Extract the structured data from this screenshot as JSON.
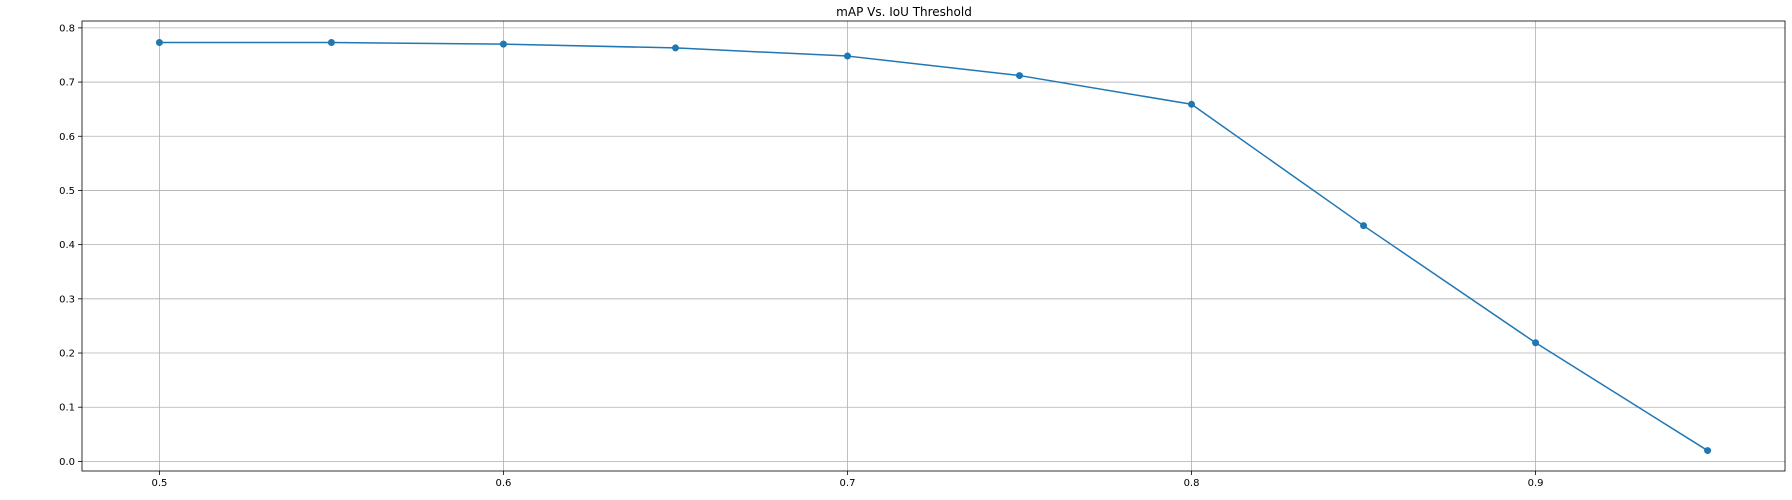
{
  "chart_data": {
    "type": "line",
    "title": "mAP Vs. IoU Threshold",
    "xlabel": "",
    "ylabel": "",
    "x": [
      0.5,
      0.55,
      0.6,
      0.65,
      0.7,
      0.75,
      0.8,
      0.85,
      0.9,
      0.95
    ],
    "series": [
      {
        "values": [
          0.773,
          0.773,
          0.77,
          0.763,
          0.748,
          0.712,
          0.659,
          0.435,
          0.219,
          0.02
        ],
        "color": "#1f77b4",
        "marker": "circle"
      }
    ],
    "xlim": [
      0.4775,
      0.9725
    ],
    "ylim": [
      -0.0177,
      0.8127
    ],
    "xticks": [
      0.5,
      0.6,
      0.7,
      0.8,
      0.9
    ],
    "xtick_labels": [
      "0.5",
      "0.6",
      "0.7",
      "0.8",
      "0.9"
    ],
    "yticks": [
      0.0,
      0.1,
      0.2,
      0.3,
      0.4,
      0.5,
      0.6,
      0.7,
      0.8
    ],
    "ytick_labels": [
      "0.0",
      "0.1",
      "0.2",
      "0.3",
      "0.4",
      "0.5",
      "0.6",
      "0.7",
      "0.8"
    ],
    "grid": true,
    "grid_color": "#b0b0b0",
    "axis_color": "#000000",
    "background": "#ffffff"
  }
}
